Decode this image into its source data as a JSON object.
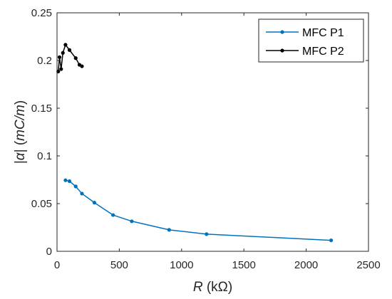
{
  "chart_data": {
    "type": "line",
    "xlabel_var": "R",
    "xlabel_unit": " (kΩ)",
    "ylabel_part1": "|",
    "ylabel_var": "α",
    "ylabel_part2": "|  (",
    "ylabel_unit": "mC/m",
    "ylabel_part3": ")",
    "xlim": [
      0,
      2500
    ],
    "ylim": [
      0,
      0.25
    ],
    "xticks": [
      0,
      500,
      1000,
      1500,
      2000,
      2500
    ],
    "xtick_labels": [
      "0",
      "500",
      "1000",
      "1500",
      "2000",
      "2500"
    ],
    "yticks": [
      0,
      0.05,
      0.1,
      0.15,
      0.2,
      0.25
    ],
    "ytick_labels": [
      "0",
      "0.05",
      "0.1",
      "0.15",
      "0.2",
      "0.25"
    ],
    "grid": false,
    "legend_position": "top-right",
    "series": [
      {
        "name": "MFC P1",
        "color": "#0072BD",
        "marker": "dot",
        "x": [
          68,
          100,
          150,
          200,
          300,
          450,
          600,
          900,
          1200,
          2200
        ],
        "y": [
          0.0745,
          0.0735,
          0.068,
          0.0605,
          0.051,
          0.038,
          0.0315,
          0.0225,
          0.018,
          0.0115
        ]
      },
      {
        "name": "MFC P2",
        "color": "#000000",
        "marker": "dot",
        "x": [
          10,
          20,
          33,
          47,
          68,
          100,
          150,
          180,
          200
        ],
        "y": [
          0.1885,
          0.2035,
          0.191,
          0.208,
          0.2165,
          0.211,
          0.2025,
          0.1955,
          0.194
        ]
      }
    ]
  }
}
